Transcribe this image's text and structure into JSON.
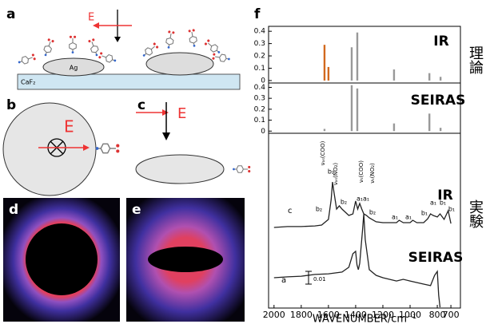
{
  "panels": {
    "a": {
      "label": "a",
      "field": "E",
      "particle": "Ag",
      "substrate": "CaF₂"
    },
    "b": {
      "label": "b",
      "field": "E"
    },
    "c": {
      "label": "c",
      "field": "E"
    },
    "d": {
      "label": "d"
    },
    "e": {
      "label": "e"
    },
    "f": {
      "label": "f"
    }
  },
  "side_labels": [
    "理論",
    "実験"
  ],
  "chart_data": [
    {
      "type": "bar",
      "title": "IR",
      "x": [
        1629,
        1600,
        1429,
        1388,
        1118,
        858,
        776
      ],
      "values": [
        0.29,
        0.11,
        0.27,
        0.39,
        0.09,
        0.06,
        0.03
      ],
      "colors": [
        "#d2691e",
        "#d2691e",
        "#999999",
        "#999999",
        "#999999",
        "#999999",
        "#999999"
      ],
      "xlim": [
        2040,
        630
      ],
      "ylim": [
        -0.02,
        0.44
      ],
      "yticks": [
        0,
        0.1,
        0.2,
        0.3,
        0.4
      ]
    },
    {
      "type": "bar",
      "title": "SEIRAS",
      "x": [
        1629,
        1429,
        1388,
        1118,
        858,
        776
      ],
      "values": [
        0.02,
        0.42,
        0.39,
        0.07,
        0.16,
        0.03
      ],
      "colors": [
        "#999999",
        "#999999",
        "#999999",
        "#999999",
        "#999999",
        "#999999"
      ],
      "xlim": [
        2040,
        630
      ],
      "ylim": [
        -0.02,
        0.44
      ],
      "yticks": [
        0,
        0.1,
        0.2,
        0.3,
        0.4
      ]
    },
    {
      "type": "line",
      "xlabel": "WAVENUMBER/cm⁻¹",
      "xlim": [
        2040,
        630
      ],
      "ylim": [
        0,
        10
      ],
      "xticks": [
        2000,
        1800,
        1600,
        1400,
        1200,
        1000,
        800,
        700
      ],
      "series": [
        {
          "name": "IR",
          "color": "#222222",
          "x": [
            2000,
            1900,
            1800,
            1700,
            1650,
            1600,
            1580,
            1570,
            1560,
            1540,
            1520,
            1500,
            1450,
            1420,
            1400,
            1385,
            1370,
            1355,
            1340,
            1320,
            1300,
            1250,
            1200,
            1100,
            1080,
            1050,
            1000,
            980,
            950,
            900,
            870,
            850,
            830,
            800,
            780,
            750,
            720,
            700
          ],
          "values": [
            4.65,
            4.7,
            4.7,
            4.74,
            4.79,
            5.12,
            6.28,
            7.3,
            6.74,
            5.72,
            5.91,
            5.72,
            5.35,
            5.44,
            6.19,
            5.72,
            6.05,
            5.72,
            5.44,
            5.35,
            5.21,
            4.98,
            4.93,
            4.93,
            5.07,
            4.93,
            4.93,
            5.07,
            4.93,
            4.93,
            5.16,
            5.44,
            5.35,
            5.26,
            5.44,
            5.12,
            5.63,
            4.88
          ]
        },
        {
          "name": "SEIRAS",
          "color": "#222222",
          "x": [
            2000,
            1900,
            1800,
            1700,
            1600,
            1500,
            1450,
            1420,
            1400,
            1390,
            1380,
            1370,
            1350,
            1340,
            1330,
            1300,
            1250,
            1200,
            1100,
            1050,
            1000,
            900,
            850,
            820,
            800,
            790,
            780
          ],
          "values": [
            1.72,
            1.77,
            1.81,
            1.91,
            1.95,
            2.05,
            2.33,
            3.12,
            3.26,
            2.47,
            2.19,
            2.56,
            4.42,
            5.44,
            3.95,
            2.19,
            1.86,
            1.72,
            1.53,
            1.63,
            1.53,
            1.35,
            1.26,
            1.86,
            2.09,
            0.7,
            0
          ]
        }
      ],
      "mode_labels": [
        "νₐₛ(COO)",
        "νₐₛ(NO₂)",
        "νₛ(COO)",
        "νₛ(NO₂)"
      ],
      "peak_labels": [
        "b₂",
        "b₂",
        "b₂",
        "a₁",
        "a₁",
        "b₂",
        "a₁",
        "a₁",
        "b₁",
        "a₁",
        "b₁",
        "b₁"
      ],
      "curve_letters": [
        "c",
        "a"
      ],
      "scale_bar": "0.01"
    }
  ]
}
